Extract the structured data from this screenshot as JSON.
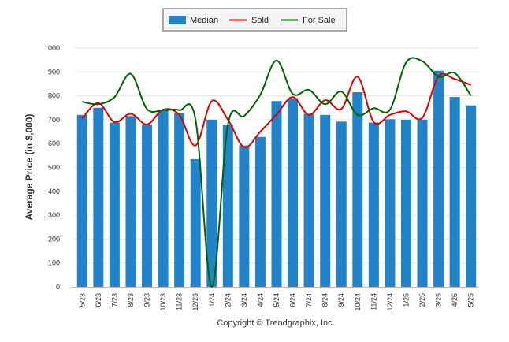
{
  "chart_data": {
    "type": "bar",
    "ylabel": "Average Price (in $,000)",
    "footer": "Copyright © Trendgraphix, Inc.",
    "ylim": [
      0,
      1000
    ],
    "yticks": [
      "0",
      "100",
      "200",
      "300",
      "400",
      "500",
      "600",
      "700",
      "800",
      "900",
      "1000"
    ],
    "grid": true,
    "legend_position": "top-center",
    "categories": [
      "5/23",
      "6/23",
      "7/23",
      "8/23",
      "9/23",
      "10/23",
      "11/23",
      "12/23",
      "1/24",
      "2/24",
      "3/24",
      "4/24",
      "5/24",
      "6/24",
      "7/24",
      "8/24",
      "9/24",
      "10/24",
      "11/24",
      "12/24",
      "1/25",
      "2/25",
      "3/25",
      "4/25",
      "5/25"
    ],
    "series": [
      {
        "name": "Median",
        "kind": "bar",
        "color": "#2183cc",
        "values": [
          720,
          750,
          688,
          715,
          680,
          742,
          728,
          535,
          700,
          680,
          592,
          628,
          778,
          790,
          725,
          720,
          692,
          815,
          688,
          702,
          700,
          700,
          905,
          795,
          760
        ]
      },
      {
        "name": "Sold",
        "kind": "line",
        "color": "#e00000",
        "values": [
          705,
          770,
          690,
          725,
          680,
          742,
          720,
          592,
          778,
          700,
          585,
          650,
          722,
          795,
          720,
          782,
          745,
          880,
          690,
          720,
          735,
          708,
          882,
          870,
          845
        ]
      },
      {
        "name": "For Sale",
        "kind": "line",
        "color": "#006400",
        "values": [
          775,
          765,
          795,
          892,
          745,
          740,
          740,
          700,
          0,
          680,
          715,
          805,
          948,
          808,
          825,
          765,
          818,
          720,
          748,
          742,
          940,
          945,
          880,
          895,
          800
        ]
      }
    ]
  }
}
